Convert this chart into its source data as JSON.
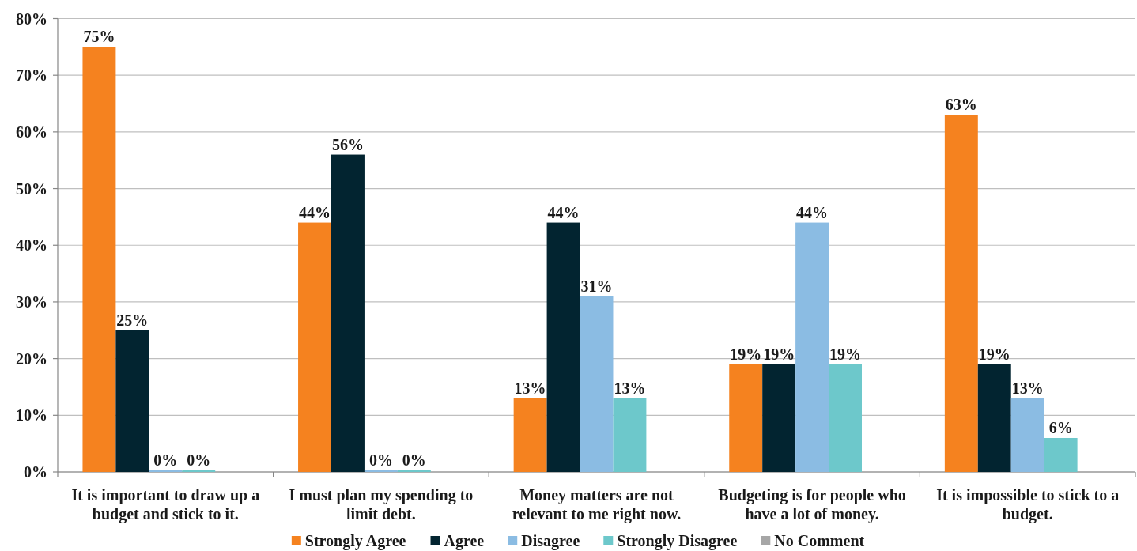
{
  "chart_data": {
    "type": "bar",
    "categories": [
      "It is important to draw up a budget and stick to it.",
      "I must plan my spending to limit debt.",
      "Money matters are not relevant to me right now.",
      "Budgeting is for people who have a lot of money.",
      "It is impossible to stick to a budget."
    ],
    "series": [
      {
        "name": "Strongly Agree",
        "color": "#f5821f",
        "values": [
          75,
          44,
          13,
          19,
          63
        ],
        "value_labels": [
          "75%",
          "44%",
          "13%",
          "19%",
          "63%"
        ]
      },
      {
        "name": "Agree",
        "color": "#022430",
        "values": [
          25,
          56,
          44,
          19,
          19
        ],
        "value_labels": [
          "25%",
          "56%",
          "44%",
          "19%",
          "19%"
        ]
      },
      {
        "name": "Disagree",
        "color": "#8bbce3",
        "values": [
          0,
          0,
          31,
          44,
          13
        ],
        "value_labels": [
          "0%",
          "0%",
          "31%",
          "44%",
          "13%"
        ]
      },
      {
        "name": "Strongly Disagree",
        "color": "#6dc8cb",
        "values": [
          0,
          0,
          13,
          19,
          6
        ],
        "value_labels": [
          "0%",
          "0%",
          "13%",
          "19%",
          "6%"
        ]
      },
      {
        "name": "No Comment",
        "color": "#a6a6a6",
        "values": [
          null,
          null,
          null,
          null,
          null
        ]
      }
    ],
    "ylim": [
      0,
      80
    ],
    "yticks": [
      {
        "value": 0,
        "label": "0%"
      },
      {
        "value": 10,
        "label": "10%"
      },
      {
        "value": 20,
        "label": "20%"
      },
      {
        "value": 30,
        "label": "30%"
      },
      {
        "value": 40,
        "label": "40%"
      },
      {
        "value": 50,
        "label": "50%"
      },
      {
        "value": 60,
        "label": "60%"
      },
      {
        "value": 70,
        "label": "70%"
      },
      {
        "value": 80,
        "label": "80%"
      }
    ],
    "grid": "y",
    "legend": "bottom"
  }
}
